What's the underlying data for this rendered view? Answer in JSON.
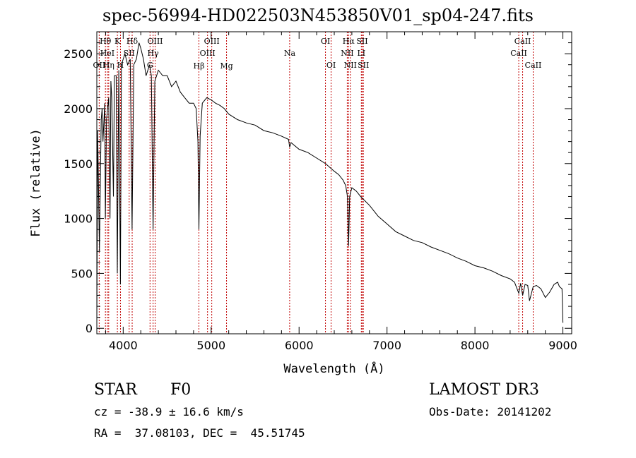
{
  "chart_data": {
    "type": "line",
    "title": "spec-56994-HD022503N453850V01_sp04-247.fits",
    "xlabel": "Wavelength (Å)",
    "ylabel": "Flux (relative)",
    "xlim": [
      3700,
      9100
    ],
    "ylim": [
      -50,
      2700
    ],
    "x_ticks": [
      4000,
      5000,
      6000,
      7000,
      8000,
      9000
    ],
    "y_ticks": [
      0,
      500,
      1000,
      1500,
      2000,
      2500
    ],
    "series": [
      {
        "name": "spectrum",
        "x": [
          3700,
          3710,
          3730,
          3750,
          3760,
          3770,
          3790,
          3797,
          3810,
          3835,
          3850,
          3860,
          3870,
          3889,
          3900,
          3920,
          3933,
          3950,
          3968,
          3980,
          4000,
          4020,
          4050,
          4080,
          4101,
          4120,
          4150,
          4180,
          4200,
          4230,
          4260,
          4300,
          4320,
          4340,
          4360,
          4380,
          4400,
          4450,
          4500,
          4550,
          4600,
          4650,
          4700,
          4750,
          4800,
          4830,
          4850,
          4861,
          4875,
          4900,
          4950,
          5000,
          5050,
          5100,
          5150,
          5200,
          5300,
          5400,
          5500,
          5600,
          5700,
          5800,
          5880,
          5893,
          5910,
          6000,
          6100,
          6200,
          6300,
          6400,
          6450,
          6500,
          6530,
          6550,
          6563,
          6575,
          6600,
          6650,
          6700,
          6800,
          6900,
          7000,
          7100,
          7200,
          7300,
          7400,
          7500,
          7600,
          7700,
          7800,
          7900,
          8000,
          8100,
          8200,
          8300,
          8400,
          8450,
          8498,
          8520,
          8542,
          8570,
          8600,
          8620,
          8662,
          8700,
          8750,
          8800,
          8850,
          8900,
          8940,
          8960,
          8990,
          9000
        ],
        "y": [
          0,
          1800,
          700,
          1900,
          2000,
          1700,
          2050,
          1000,
          1900,
          2100,
          1000,
          2250,
          2100,
          1200,
          2300,
          2300,
          500,
          2350,
          400,
          2400,
          2450,
          2500,
          2400,
          2450,
          900,
          2400,
          2450,
          2600,
          2550,
          2450,
          2300,
          2400,
          2300,
          900,
          2250,
          2300,
          2350,
          2300,
          2300,
          2200,
          2250,
          2150,
          2100,
          2050,
          2050,
          2000,
          1700,
          900,
          1750,
          2050,
          2100,
          2080,
          2050,
          2030,
          2000,
          1950,
          1900,
          1870,
          1850,
          1800,
          1780,
          1750,
          1720,
          1650,
          1690,
          1630,
          1600,
          1550,
          1500,
          1430,
          1400,
          1350,
          1300,
          1200,
          750,
          1200,
          1280,
          1250,
          1200,
          1120,
          1020,
          950,
          880,
          840,
          800,
          780,
          740,
          710,
          680,
          640,
          610,
          570,
          550,
          520,
          480,
          450,
          420,
          320,
          410,
          300,
          400,
          390,
          250,
          380,
          390,
          360,
          280,
          330,
          400,
          420,
          380,
          360,
          50
        ]
      }
    ],
    "lines": [
      {
        "label": "Hθ",
        "x": 3798,
        "row": 1
      },
      {
        "label": "HeI",
        "x": 3820,
        "row": 2
      },
      {
        "label": "OII",
        "x": 3727,
        "row": 3
      },
      {
        "label": "Hη",
        "x": 3835,
        "row": 3
      },
      {
        "label": "K",
        "x": 3934,
        "row": 1
      },
      {
        "label": "SII",
        "x": 4068,
        "row": 2
      },
      {
        "label": "H",
        "x": 3969,
        "row": 3
      },
      {
        "label": "Hδ",
        "x": 4102,
        "row": 1
      },
      {
        "label": "OIII",
        "x": 4363,
        "row": 1
      },
      {
        "label": "Hγ",
        "x": 4340,
        "row": 2
      },
      {
        "label": "G",
        "x": 4305,
        "row": 3
      },
      {
        "label": "Hβ",
        "x": 4861,
        "row": 4
      },
      {
        "label": "OIII",
        "x": 5007,
        "row": 1
      },
      {
        "label": "OIII",
        "x": 4959,
        "row": 2
      },
      {
        "label": "Mg",
        "x": 5175,
        "row": 4
      },
      {
        "label": "Na",
        "x": 5893,
        "row": 2
      },
      {
        "label": "OI",
        "x": 6300,
        "row": 1
      },
      {
        "label": "OI",
        "x": 6364,
        "row": 3
      },
      {
        "label": "Hα",
        "x": 6563,
        "row": 1
      },
      {
        "label": "NII",
        "x": 6548,
        "row": 2
      },
      {
        "label": "NII",
        "x": 6583,
        "row": 3
      },
      {
        "label": "SII",
        "x": 6717,
        "row": 1
      },
      {
        "label": "LI",
        "x": 6708,
        "row": 2
      },
      {
        "label": "SII",
        "x": 6731,
        "row": 3
      },
      {
        "label": "CaII",
        "x": 8542,
        "row": 1
      },
      {
        "label": "CaII",
        "x": 8498,
        "row": 2
      },
      {
        "label": "CaII",
        "x": 8662,
        "row": 3
      }
    ]
  },
  "info": {
    "object_type": "STAR",
    "spectral_class": "F0",
    "survey": "LAMOST DR3",
    "cz": "cz = -38.9 ± 16.6 km/s",
    "obs_date": "Obs-Date: 20141202",
    "coords": "RA =  37.08103, DEC =  45.51745"
  }
}
